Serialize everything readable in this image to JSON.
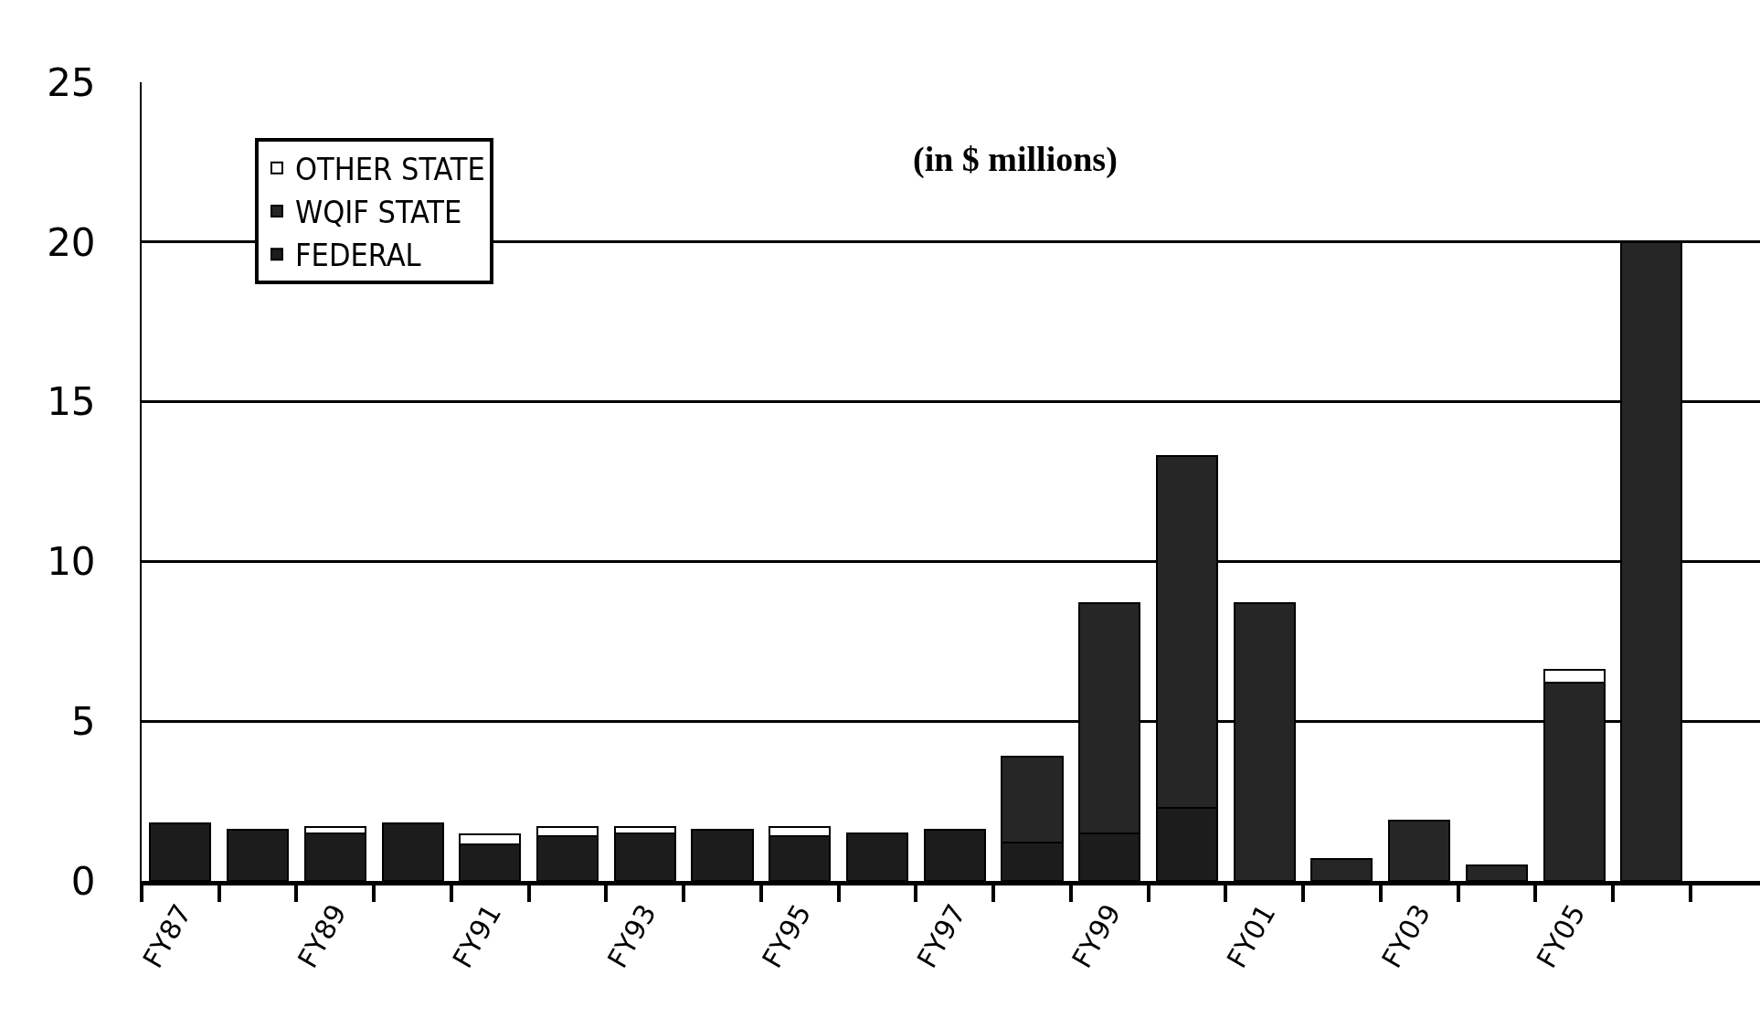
{
  "chart_data": {
    "type": "bar",
    "stacked": true,
    "categories": [
      "FY87",
      null,
      "FY89",
      null,
      "FY91",
      null,
      "FY93",
      null,
      "FY95",
      null,
      "FY97",
      null,
      "FY99",
      null,
      "FY01",
      null,
      "FY03",
      null,
      "FY05",
      null
    ],
    "series": [
      {
        "name": "FEDERAL",
        "color": "#1c1c1c",
        "values": [
          1.8,
          1.6,
          1.5,
          1.8,
          1.15,
          1.4,
          1.5,
          1.6,
          1.4,
          1.5,
          1.6,
          1.2,
          1.5,
          2.3,
          0,
          0,
          0,
          0,
          0,
          0
        ]
      },
      {
        "name": "WQIF STATE",
        "color": "#262626",
        "values": [
          0,
          0,
          0,
          0,
          0,
          0,
          0,
          0,
          0,
          0,
          0,
          2.7,
          7.2,
          11.0,
          8.7,
          0.7,
          1.9,
          0.5,
          6.2,
          20.0
        ]
      },
      {
        "name": "OTHER STATE",
        "color": "#ffffff",
        "values": [
          0,
          0,
          0.2,
          0,
          0.3,
          0.3,
          0.2,
          0,
          0.3,
          0,
          0,
          0,
          0,
          0,
          0,
          0,
          0,
          0,
          0.4,
          0
        ]
      }
    ],
    "ylim": [
      0,
      25
    ],
    "yticks": [
      0,
      5,
      10,
      15,
      20,
      25
    ],
    "grid": "y",
    "legend": "top left",
    "annotations": [
      "(in $ millions)"
    ]
  }
}
